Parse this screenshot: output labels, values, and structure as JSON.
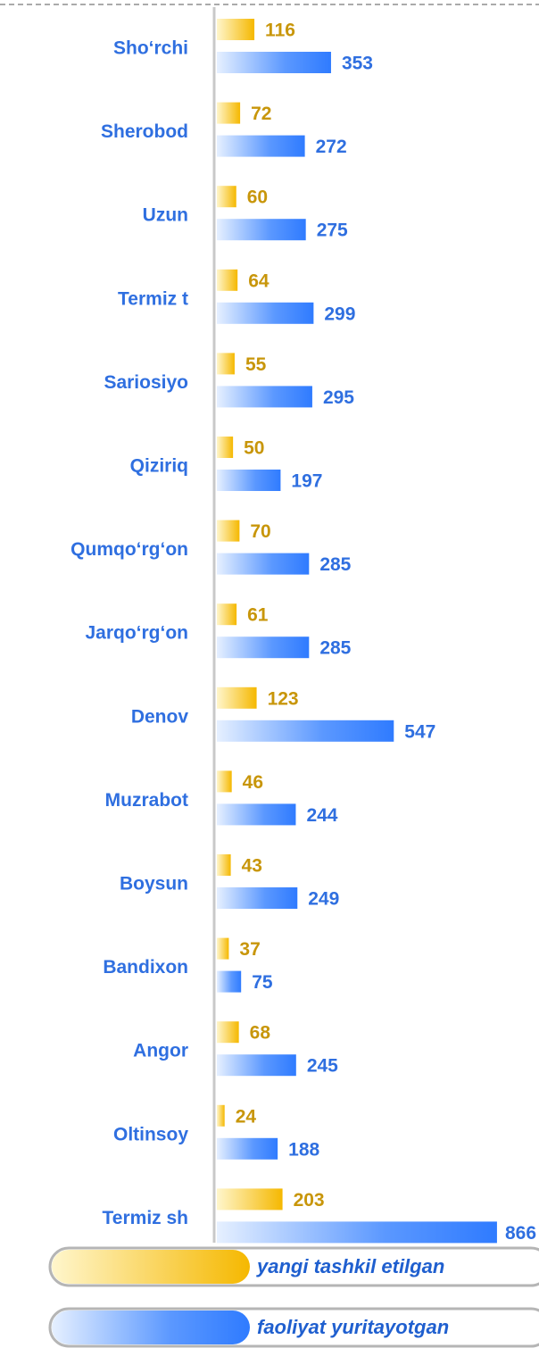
{
  "chart_data": {
    "type": "bar",
    "orientation": "horizontal",
    "categories": [
      "Sho‘rchi",
      "Sherobod",
      "Uzun",
      "Termiz t",
      "Sariosiyo",
      "Qiziriq",
      "Qumqo‘rg‘on",
      "Jarqo‘rg‘on",
      "Denov",
      "Muzrabot",
      "Boysun",
      "Bandixon",
      "Angor",
      "Oltinsoy",
      "Termiz sh"
    ],
    "series": [
      {
        "name": "yangi tashkil etilgan",
        "color": "#f5b800",
        "values": [
          116,
          72,
          60,
          64,
          55,
          50,
          70,
          61,
          123,
          46,
          43,
          37,
          68,
          24,
          203
        ]
      },
      {
        "name": "faoliyat yuritayotgan",
        "color": "#2f7bff",
        "values": [
          353,
          272,
          275,
          299,
          295,
          197,
          285,
          285,
          547,
          244,
          249,
          75,
          245,
          188,
          866
        ]
      }
    ],
    "xlim": [
      0,
      880
    ]
  }
}
